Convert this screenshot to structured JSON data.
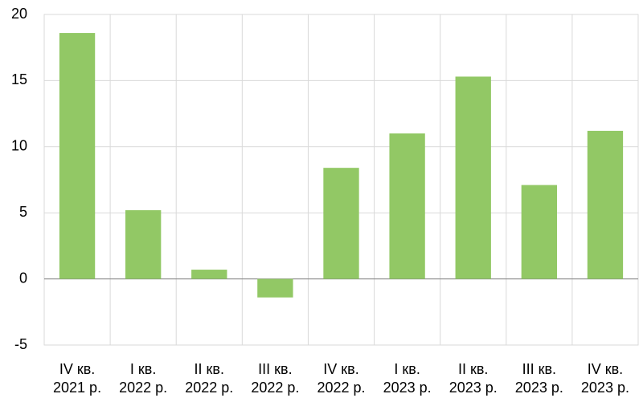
{
  "chart_data": {
    "type": "bar",
    "categories": [
      "IV кв.\n2021 р.",
      "I кв.\n2022 р.",
      "II кв.\n2022 р.",
      "III кв.\n2022 р.",
      "IV кв.\n2022 р.",
      "I кв.\n2023 р.",
      "II кв.\n2023 р.",
      "III кв.\n2023 р.",
      "IV кв.\n2023 р."
    ],
    "values": [
      18.6,
      5.2,
      0.7,
      -1.4,
      8.4,
      11.0,
      15.3,
      7.1,
      11.2
    ],
    "color": "#92c865",
    "ylim": [
      -5,
      20
    ],
    "yticks": [
      -5,
      0,
      5,
      10,
      15,
      20
    ],
    "grid": true
  }
}
